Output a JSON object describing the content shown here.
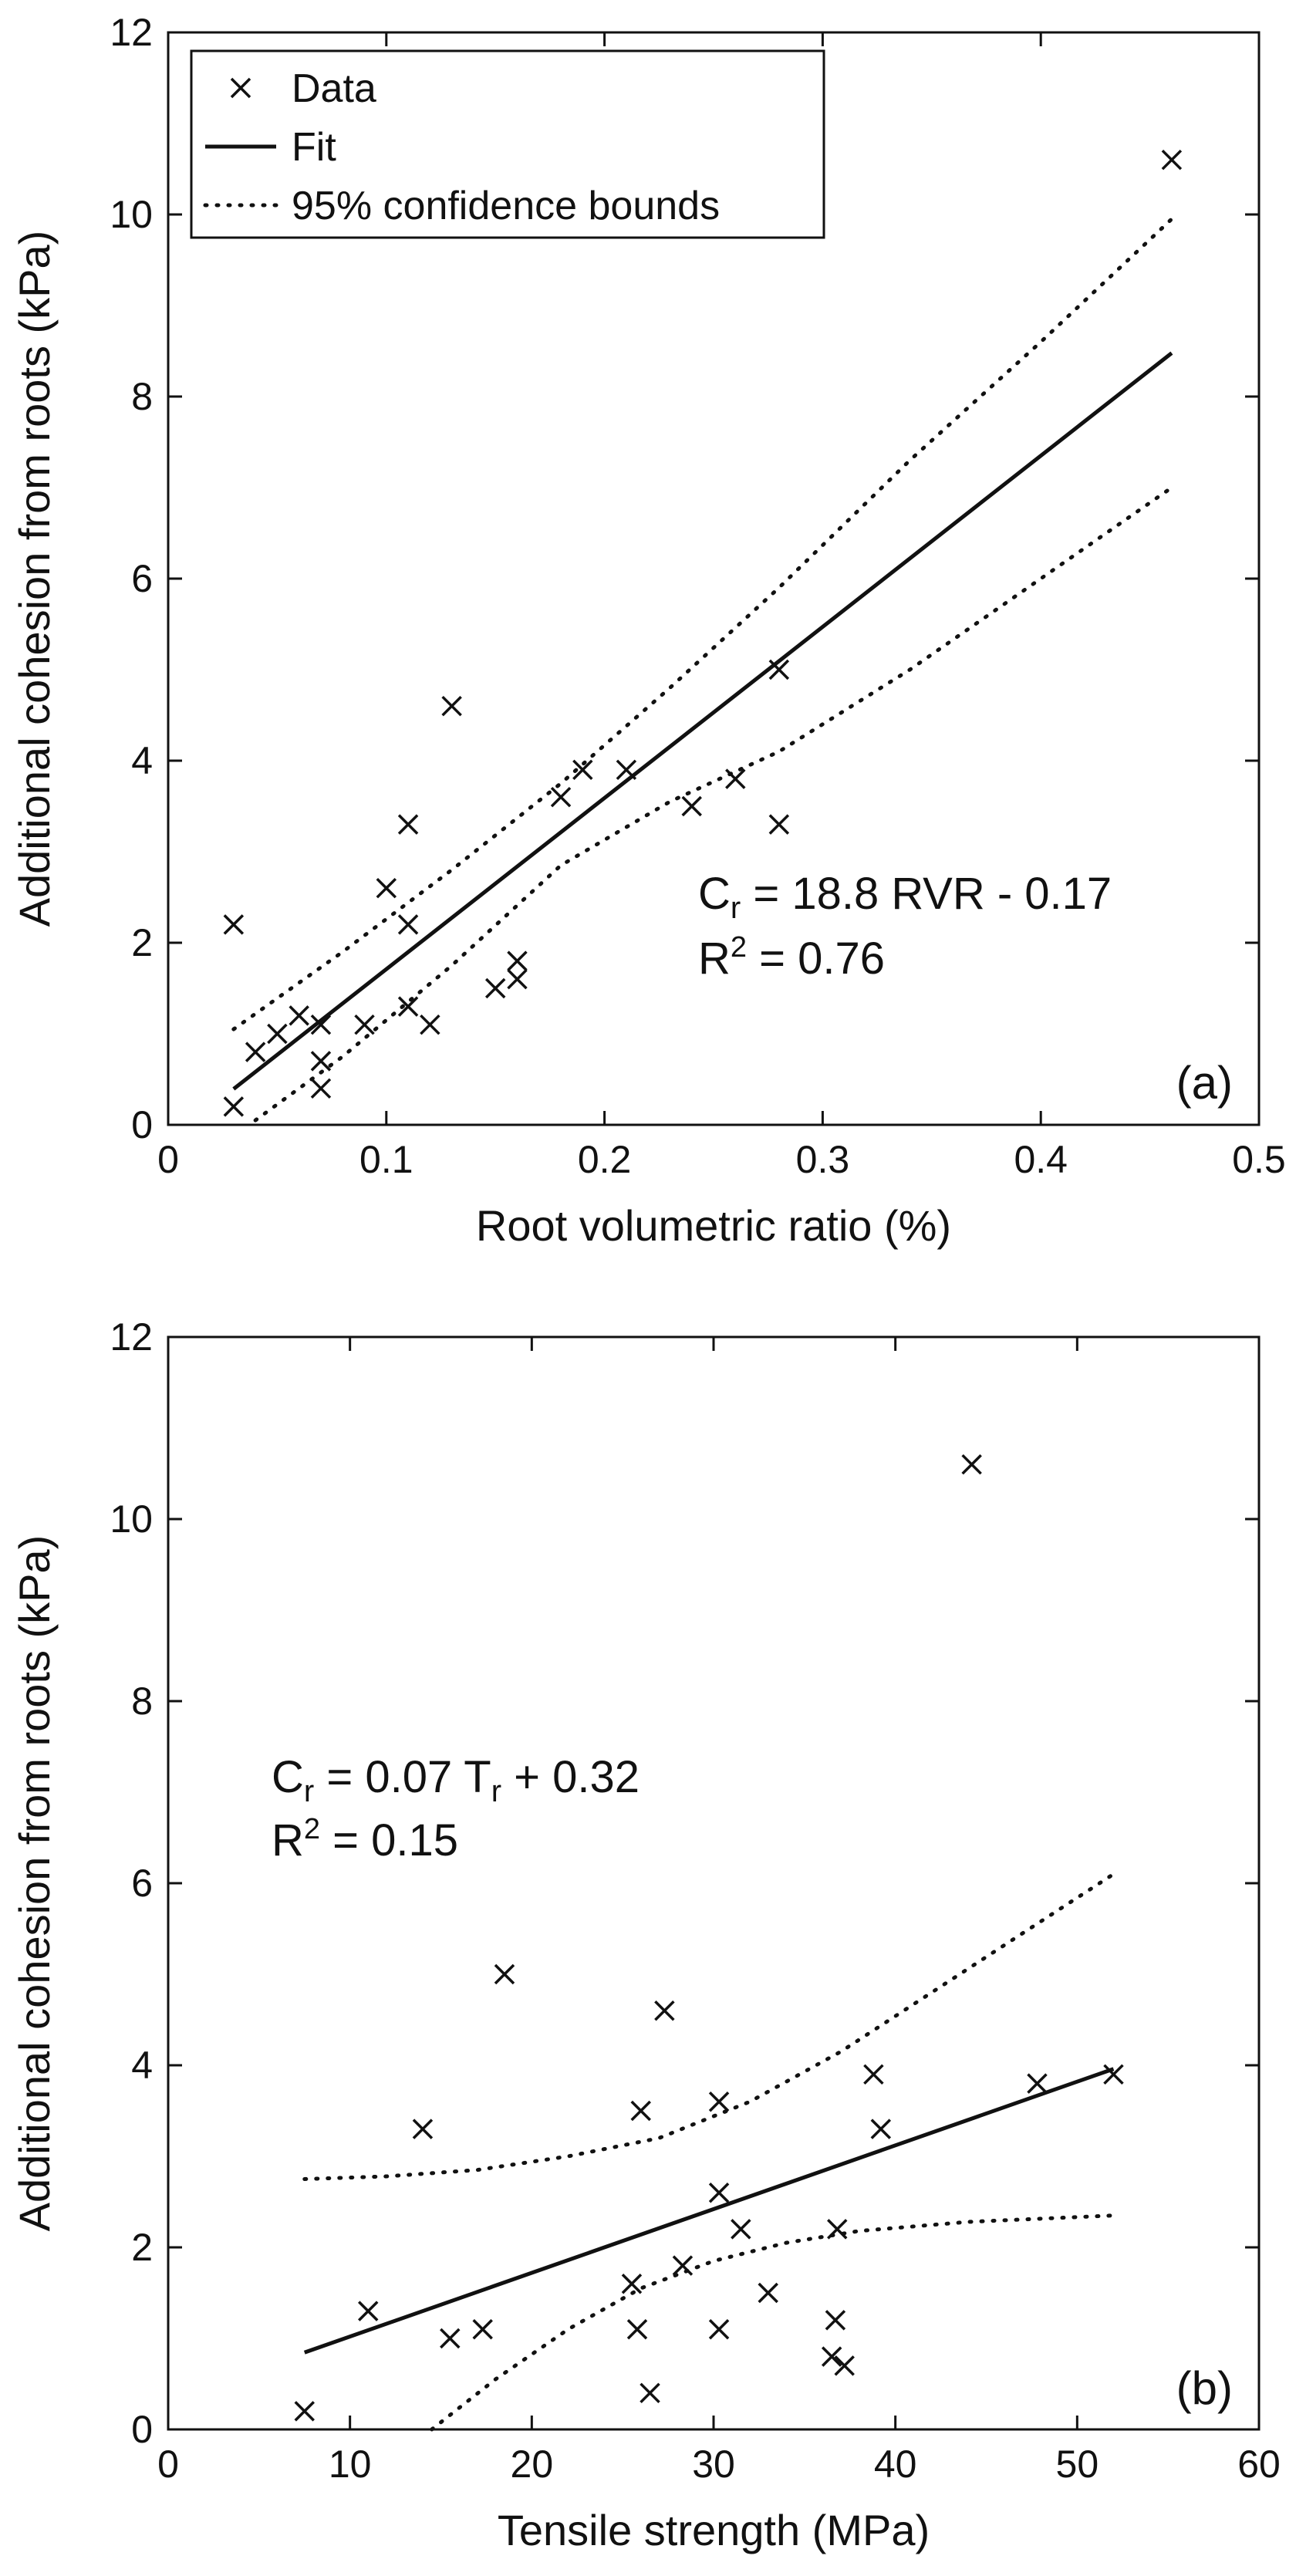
{
  "chart_data": [
    {
      "type": "scatter",
      "xlabel": "Root volumetric ratio (%)",
      "ylabel": "Additional cohesion from roots (kPa)",
      "xlim": [
        0,
        0.5
      ],
      "ylim": [
        0,
        12
      ],
      "xticks": [
        0,
        0.1,
        0.2,
        0.3,
        0.4,
        0.5
      ],
      "xtick_labels": [
        "0",
        "0.1",
        "0.2",
        "0.3",
        "0.4",
        "0.5"
      ],
      "yticks": [
        0,
        2,
        4,
        6,
        8,
        10,
        12
      ],
      "ytick_labels": [
        "0",
        "2",
        "4",
        "6",
        "8",
        "10",
        "12"
      ],
      "grid": false,
      "legend": {
        "placement": "top-left",
        "entries": [
          {
            "label": "Data",
            "marker": "x"
          },
          {
            "label": "Fit",
            "line": "solid"
          },
          {
            "label": "95% confidence bounds",
            "line": "dotted"
          }
        ]
      },
      "equation": {
        "lhs": "C",
        "sub": "r",
        "rhs": " = 18.8 RVR - 0.17"
      },
      "r2": {
        "base": "R",
        "sup": "2",
        "rest": " = 0.76"
      },
      "panel_label": "(a)",
      "points": [
        [
          0.03,
          0.2
        ],
        [
          0.03,
          2.2
        ],
        [
          0.04,
          0.8
        ],
        [
          0.05,
          1.0
        ],
        [
          0.06,
          1.2
        ],
        [
          0.07,
          1.1
        ],
        [
          0.07,
          0.7
        ],
        [
          0.07,
          0.4
        ],
        [
          0.09,
          1.1
        ],
        [
          0.1,
          2.6
        ],
        [
          0.11,
          3.3
        ],
        [
          0.11,
          2.2
        ],
        [
          0.11,
          1.3
        ],
        [
          0.12,
          1.1
        ],
        [
          0.13,
          4.6
        ],
        [
          0.15,
          1.5
        ],
        [
          0.16,
          1.8
        ],
        [
          0.16,
          1.6
        ],
        [
          0.18,
          3.6
        ],
        [
          0.19,
          3.9
        ],
        [
          0.21,
          3.9
        ],
        [
          0.24,
          3.5
        ],
        [
          0.26,
          3.8
        ],
        [
          0.28,
          5.0
        ],
        [
          0.28,
          3.3
        ],
        [
          0.46,
          10.6
        ]
      ],
      "fit": {
        "slope": 18.8,
        "intercept": -0.17,
        "x_range": [
          0.03,
          0.46
        ]
      },
      "upper_bound": [
        [
          0.03,
          1.05
        ],
        [
          0.08,
          1.9
        ],
        [
          0.13,
          2.8
        ],
        [
          0.18,
          3.75
        ],
        [
          0.23,
          4.8
        ],
        [
          0.28,
          5.9
        ],
        [
          0.34,
          7.3
        ],
        [
          0.4,
          8.6
        ],
        [
          0.46,
          9.95
        ]
      ],
      "lower_bound": [
        [
          0.04,
          0.05
        ],
        [
          0.08,
          0.75
        ],
        [
          0.13,
          1.75
        ],
        [
          0.18,
          2.85
        ],
        [
          0.23,
          3.55
        ],
        [
          0.28,
          4.1
        ],
        [
          0.34,
          5.0
        ],
        [
          0.4,
          6.0
        ],
        [
          0.46,
          7.0
        ]
      ]
    },
    {
      "type": "scatter",
      "xlabel": "Tensile strength (MPa)",
      "ylabel": "Additional cohesion from roots (kPa)",
      "xlim": [
        0,
        60
      ],
      "ylim": [
        0,
        12
      ],
      "xticks": [
        0,
        10,
        20,
        30,
        40,
        50,
        60
      ],
      "xtick_labels": [
        "0",
        "10",
        "20",
        "30",
        "40",
        "50",
        "60"
      ],
      "yticks": [
        0,
        2,
        4,
        6,
        8,
        10,
        12
      ],
      "ytick_labels": [
        "0",
        "2",
        "4",
        "6",
        "8",
        "10",
        "12"
      ],
      "grid": false,
      "equation": {
        "lhs": "C",
        "sub": "r",
        "mid": " = 0.07 T",
        "sub2": "r",
        "rhs": " + 0.32"
      },
      "r2": {
        "base": "R",
        "sup": "2",
        "rest": " = 0.15"
      },
      "panel_label": "(b)",
      "points": [
        [
          7.5,
          0.2
        ],
        [
          11.0,
          1.3
        ],
        [
          14.0,
          3.3
        ],
        [
          15.5,
          1.0
        ],
        [
          17.3,
          1.1
        ],
        [
          18.5,
          5.0
        ],
        [
          25.5,
          1.6
        ],
        [
          25.8,
          1.1
        ],
        [
          26.0,
          3.5
        ],
        [
          26.5,
          0.4
        ],
        [
          27.3,
          4.6
        ],
        [
          28.3,
          1.8
        ],
        [
          30.3,
          3.6
        ],
        [
          30.3,
          2.6
        ],
        [
          30.3,
          1.1
        ],
        [
          31.5,
          2.2
        ],
        [
          33.0,
          1.5
        ],
        [
          36.5,
          0.8
        ],
        [
          36.7,
          1.2
        ],
        [
          36.8,
          2.2
        ],
        [
          37.2,
          0.7
        ],
        [
          38.8,
          3.9
        ],
        [
          39.2,
          3.3
        ],
        [
          44.2,
          10.6
        ],
        [
          47.8,
          3.8
        ],
        [
          52.0,
          3.9
        ]
      ],
      "fit": {
        "slope": 0.07,
        "intercept": 0.32,
        "x_range": [
          7.5,
          52.0
        ]
      },
      "upper_bound": [
        [
          7.5,
          2.75
        ],
        [
          12,
          2.78
        ],
        [
          17,
          2.85
        ],
        [
          22,
          3.0
        ],
        [
          27,
          3.2
        ],
        [
          32,
          3.6
        ],
        [
          37,
          4.15
        ],
        [
          42,
          4.8
        ],
        [
          47,
          5.45
        ],
        [
          52,
          6.1
        ]
      ],
      "lower_bound": [
        [
          14.5,
          0.0
        ],
        [
          18,
          0.55
        ],
        [
          22,
          1.1
        ],
        [
          26,
          1.55
        ],
        [
          30,
          1.85
        ],
        [
          34,
          2.05
        ],
        [
          38,
          2.18
        ],
        [
          44,
          2.28
        ],
        [
          52,
          2.35
        ]
      ]
    }
  ]
}
